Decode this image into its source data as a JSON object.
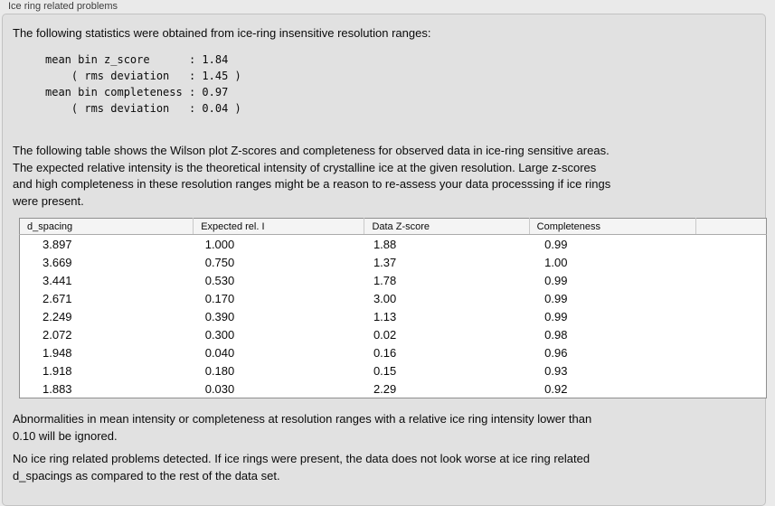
{
  "groupbox": {
    "label": "Ice ring related problems"
  },
  "intro": "The following statistics were obtained from ice-ring insensitive resolution ranges:",
  "stats_block": {
    "lines": [
      "mean bin z_score      : 1.84",
      "    ( rms deviation   : 1.45 )",
      "mean bin completeness : 0.97",
      "    ( rms deviation   : 0.04 )"
    ]
  },
  "description": {
    "lines": [
      "The following table shows the Wilson plot Z-scores and completeness for observed data in ice-ring sensitive areas.",
      "The expected relative intensity is the theoretical intensity of crystalline ice at the given resolution. Large z-scores",
      "and high completeness in these resolution ranges might be a reason to re-assess your data processsing if ice rings",
      "were present."
    ]
  },
  "table": {
    "columns": [
      "d_spacing",
      "Expected rel. I",
      "Data Z-score",
      "Completeness"
    ],
    "rows": [
      [
        "3.897",
        "1.000",
        "1.88",
        "0.99"
      ],
      [
        "3.669",
        "0.750",
        "1.37",
        "1.00"
      ],
      [
        "3.441",
        "0.530",
        "1.78",
        "0.99"
      ],
      [
        "2.671",
        "0.170",
        "3.00",
        "0.99"
      ],
      [
        "2.249",
        "0.390",
        "1.13",
        "0.99"
      ],
      [
        "2.072",
        "0.300",
        "0.02",
        "0.98"
      ],
      [
        "1.948",
        "0.040",
        "0.16",
        "0.96"
      ],
      [
        "1.918",
        "0.180",
        "0.15",
        "0.93"
      ],
      [
        "1.883",
        "0.030",
        "2.29",
        "0.92"
      ]
    ]
  },
  "footnote": {
    "lines": [
      "Abnormalities in mean intensity or completeness at resolution ranges with a relative ice ring intensity lower than",
      "0.10 will be ignored."
    ]
  },
  "conclusion": {
    "lines": [
      "No ice ring related problems detected. If ice rings were present, the data does not look worse at ice ring related",
      "d_spacings as compared to the rest of the data set."
    ]
  },
  "colors": {
    "panel_background": "#eaeaea",
    "groupbox_background": "#e1e1e1",
    "groupbox_border": "#c2c2c2",
    "table_border": "#8f8f8f",
    "table_header_background": "#f4f4f4",
    "table_row_background": "#ffffff",
    "text": "#0a0a0a"
  }
}
